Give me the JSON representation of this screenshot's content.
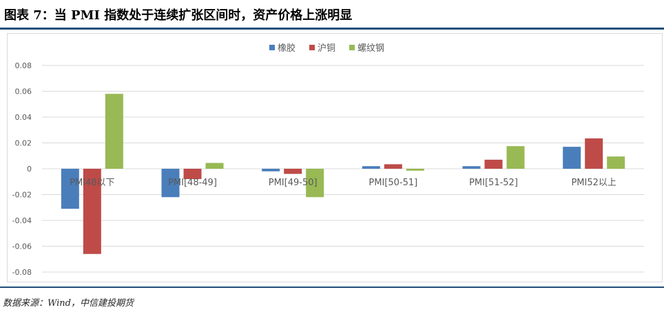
{
  "title": "图表 7：当 PMI 指数处于连续扩张区间时，资产价格上涨明显",
  "source": "数据来源：Wind，中信建投期货",
  "colors": {
    "橡胶": "#4a7ebb",
    "沪铜": "#be4b48",
    "螺纹钢": "#98b954",
    "grid": "#d9d9d9",
    "text": "#595959"
  },
  "chart_data": {
    "type": "bar",
    "title": "",
    "xlabel": "",
    "ylabel": "",
    "categories": [
      "PMI48以下",
      "PMI[48-49]",
      "PMI[49-50]",
      "PMI[50-51]",
      "PMI[51-52]",
      "PMI52以上"
    ],
    "series": [
      {
        "name": "橡胶",
        "values": [
          -0.031,
          -0.022,
          -0.002,
          0.002,
          0.002,
          0.017
        ]
      },
      {
        "name": "沪铜",
        "values": [
          -0.066,
          -0.008,
          -0.004,
          0.0035,
          0.007,
          0.0235
        ]
      },
      {
        "name": "螺纹钢",
        "values": [
          0.058,
          0.0045,
          -0.022,
          -0.0015,
          0.0175,
          0.0095
        ]
      }
    ],
    "ylim": [
      -0.08,
      0.08
    ],
    "yticks": [
      -0.08,
      -0.06,
      -0.04,
      -0.02,
      0,
      0.02,
      0.04,
      0.06,
      0.08
    ],
    "ytick_labels": [
      "-0.08",
      "-0.06",
      "-0.04",
      "-0.02",
      "0",
      "0.02",
      "0.04",
      "0.06",
      "0.08"
    ],
    "grid": true,
    "legend": "top-center"
  }
}
